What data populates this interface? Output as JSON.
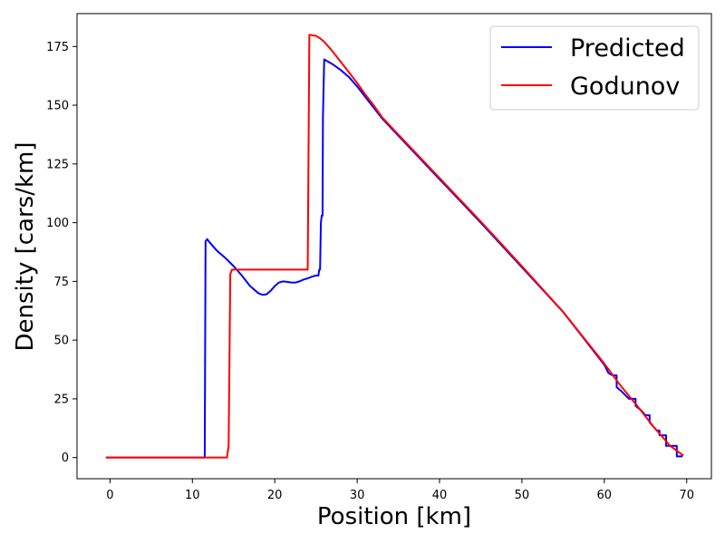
{
  "chart_data": {
    "type": "line",
    "title": "",
    "xlabel": "Position [km]",
    "ylabel": "Density [cars/km]",
    "xlim": [
      -4,
      73
    ],
    "ylim": [
      -9,
      189
    ],
    "xticks": [
      0,
      10,
      20,
      30,
      40,
      50,
      60,
      70
    ],
    "yticks": [
      0,
      25,
      50,
      75,
      100,
      125,
      150,
      175
    ],
    "grid": false,
    "legend": {
      "placement": "top-right",
      "entries": [
        "Predicted",
        "Godunov"
      ]
    },
    "series": [
      {
        "name": "Predicted",
        "color": "#0000ff",
        "points": [
          [
            -0.5,
            0
          ],
          [
            11.5,
            0
          ],
          [
            11.6,
            92
          ],
          [
            11.8,
            93
          ],
          [
            12.0,
            92
          ],
          [
            13.0,
            88
          ],
          [
            14.0,
            85
          ],
          [
            15.0,
            81.5
          ],
          [
            16.0,
            77.5
          ],
          [
            17.0,
            73
          ],
          [
            18.0,
            70
          ],
          [
            18.5,
            69.3
          ],
          [
            19.0,
            69.5
          ],
          [
            19.5,
            71
          ],
          [
            20.0,
            73
          ],
          [
            20.5,
            74.5
          ],
          [
            21.0,
            75
          ],
          [
            21.5,
            74.8
          ],
          [
            22.0,
            74.5
          ],
          [
            22.5,
            74.5
          ],
          [
            23.0,
            75
          ],
          [
            23.5,
            75.8
          ],
          [
            24.0,
            76.3
          ],
          [
            24.5,
            77
          ],
          [
            25.0,
            77.5
          ],
          [
            25.3,
            77.5
          ],
          [
            25.4,
            80
          ],
          [
            25.5,
            80
          ],
          [
            25.6,
            100
          ],
          [
            25.7,
            103
          ],
          [
            25.8,
            103
          ],
          [
            25.85,
            145
          ],
          [
            26.0,
            169.5
          ],
          [
            27,
            167.5
          ],
          [
            28,
            165
          ],
          [
            29,
            162
          ],
          [
            30,
            158
          ],
          [
            31,
            153.5
          ],
          [
            32,
            149
          ],
          [
            33,
            144.5
          ],
          [
            35,
            137
          ],
          [
            40,
            118.5
          ],
          [
            45,
            100
          ],
          [
            50,
            81
          ],
          [
            55,
            62
          ],
          [
            60,
            39.5
          ],
          [
            60.5,
            36
          ],
          [
            61,
            35
          ],
          [
            61.5,
            35
          ],
          [
            61.5,
            30
          ],
          [
            62,
            28.5
          ],
          [
            63,
            25
          ],
          [
            63.8,
            25
          ],
          [
            63.8,
            22
          ],
          [
            64.5,
            20
          ],
          [
            65.0,
            18
          ],
          [
            65.5,
            18
          ],
          [
            65.5,
            15
          ],
          [
            66,
            13
          ],
          [
            66.4,
            11.5
          ],
          [
            66.7,
            11.5
          ],
          [
            66.7,
            9.5
          ],
          [
            67.5,
            9.5
          ],
          [
            67.5,
            5
          ],
          [
            68.8,
            5
          ],
          [
            68.8,
            0.5
          ],
          [
            69.5,
            0.5
          ]
        ]
      },
      {
        "name": "Godunov",
        "color": "#ff0000",
        "points": [
          [
            -0.5,
            0
          ],
          [
            14.2,
            0
          ],
          [
            14.4,
            5
          ],
          [
            14.5,
            40
          ],
          [
            14.6,
            78
          ],
          [
            14.8,
            80
          ],
          [
            24.0,
            80
          ],
          [
            24.1,
            130
          ],
          [
            24.2,
            180
          ],
          [
            25.0,
            179.5
          ],
          [
            25.5,
            178.5
          ],
          [
            26,
            177
          ],
          [
            27,
            173
          ],
          [
            28,
            168.5
          ],
          [
            29,
            164
          ],
          [
            30,
            159.5
          ],
          [
            31,
            154.5
          ],
          [
            32,
            150
          ],
          [
            33,
            145
          ],
          [
            35,
            137.5
          ],
          [
            40,
            119
          ],
          [
            45,
            100.5
          ],
          [
            50,
            81.5
          ],
          [
            55,
            62
          ],
          [
            60,
            40
          ],
          [
            62,
            30.5
          ],
          [
            64,
            22
          ],
          [
            66,
            13
          ],
          [
            68,
            5
          ],
          [
            69.6,
            0.8
          ]
        ]
      }
    ]
  }
}
